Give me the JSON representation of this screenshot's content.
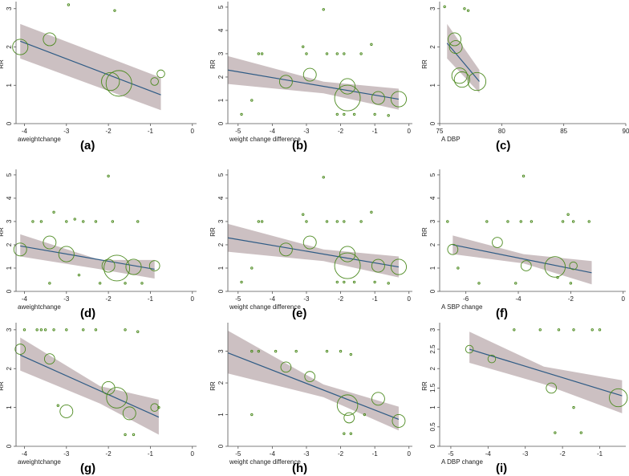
{
  "colors": {
    "band": "#c6b9bb",
    "line": "#2e5b85",
    "marker": "#4c8a1f",
    "axis": "#555555"
  },
  "chart_data": [
    {
      "type": "scatter",
      "panel_label": "(a)",
      "xlabel": "aweightchange",
      "ylabel": "RR",
      "xlim": [
        -4.2,
        0.1
      ],
      "ylim": [
        0,
        3.1
      ],
      "xticks": [
        -4,
        -3,
        -2,
        -1,
        0
      ],
      "yticks": [
        0,
        1,
        2,
        3
      ],
      "points": [
        {
          "x": -4.1,
          "y": 2.0,
          "size": 6
        },
        {
          "x": -3.4,
          "y": 2.2,
          "size": 5
        },
        {
          "x": -1.95,
          "y": 1.1,
          "size": 7
        },
        {
          "x": -1.75,
          "y": 1.05,
          "size": 10
        },
        {
          "x": -0.9,
          "y": 1.1,
          "size": 3
        },
        {
          "x": -0.75,
          "y": 1.3,
          "size": 3
        },
        {
          "x": -2.95,
          "y": 3.1,
          "size": 1
        },
        {
          "x": -1.85,
          "y": 2.95,
          "size": 1
        }
      ],
      "fit": {
        "x": [
          -4.1,
          -0.75
        ],
        "y": [
          2.15,
          0.75
        ]
      },
      "ci": {
        "x": [
          -4.1,
          -0.75
        ],
        "lower": [
          1.7,
          0.35
        ],
        "upper": [
          2.6,
          1.2
        ]
      }
    },
    {
      "type": "scatter",
      "panel_label": "(b)",
      "xlabel": "weight change difference",
      "ylabel": "RR",
      "xlim": [
        -5.3,
        0.1
      ],
      "ylim": [
        0,
        5.1
      ],
      "xticks": [
        -5,
        -4,
        -3,
        -2,
        -1,
        0
      ],
      "yticks": [
        0,
        1,
        2,
        3,
        4,
        5
      ],
      "points": [
        {
          "x": -3.6,
          "y": 1.8,
          "size": 5
        },
        {
          "x": -2.9,
          "y": 2.1,
          "size": 5
        },
        {
          "x": -1.8,
          "y": 1.6,
          "size": 6
        },
        {
          "x": -1.8,
          "y": 1.1,
          "size": 10
        },
        {
          "x": -0.9,
          "y": 1.1,
          "size": 5
        },
        {
          "x": -0.3,
          "y": 1.05,
          "size": 6
        },
        {
          "x": -2.5,
          "y": 4.9,
          "size": 1
        },
        {
          "x": -4.4,
          "y": 3.0,
          "size": 1
        },
        {
          "x": -4.3,
          "y": 3.0,
          "size": 1
        },
        {
          "x": -3.1,
          "y": 3.3,
          "size": 1
        },
        {
          "x": -3.0,
          "y": 3.0,
          "size": 1
        },
        {
          "x": -2.4,
          "y": 3.0,
          "size": 1
        },
        {
          "x": -2.1,
          "y": 3.0,
          "size": 1
        },
        {
          "x": -1.9,
          "y": 3.0,
          "size": 1
        },
        {
          "x": -1.4,
          "y": 3.0,
          "size": 1
        },
        {
          "x": -1.1,
          "y": 3.4,
          "size": 1
        },
        {
          "x": -4.6,
          "y": 1.0,
          "size": 1
        },
        {
          "x": -4.9,
          "y": 0.4,
          "size": 1
        },
        {
          "x": -2.1,
          "y": 0.4,
          "size": 1
        },
        {
          "x": -1.9,
          "y": 0.4,
          "size": 1
        },
        {
          "x": -1.6,
          "y": 0.4,
          "size": 1
        },
        {
          "x": -1.0,
          "y": 0.4,
          "size": 1
        },
        {
          "x": -0.6,
          "y": 0.35,
          "size": 1
        }
      ],
      "fit": {
        "x": [
          -5.3,
          -0.3
        ],
        "y": [
          2.3,
          1.05
        ]
      },
      "ci": {
        "x": [
          -5.3,
          -2.5,
          -0.3
        ],
        "lower": [
          1.7,
          1.3,
          0.6
        ],
        "upper": [
          2.9,
          1.8,
          1.5
        ]
      }
    },
    {
      "type": "scatter",
      "panel_label": "(c)",
      "xlabel": "A DBP",
      "ylabel": "RR",
      "xlim": [
        75,
        90
      ],
      "ylim": [
        0,
        3.1
      ],
      "xticks": [
        75,
        80,
        85,
        90
      ],
      "yticks": [
        0,
        1,
        2,
        3
      ],
      "points": [
        {
          "x": 76.2,
          "y": 2.2,
          "size": 5
        },
        {
          "x": 76.3,
          "y": 2.0,
          "size": 5
        },
        {
          "x": 76.6,
          "y": 1.25,
          "size": 6
        },
        {
          "x": 76.8,
          "y": 1.15,
          "size": 6
        },
        {
          "x": 78.0,
          "y": 1.1,
          "size": 7
        },
        {
          "x": 75.4,
          "y": 3.05,
          "size": 1
        },
        {
          "x": 77.0,
          "y": 3.0,
          "size": 1
        },
        {
          "x": 77.3,
          "y": 2.95,
          "size": 1
        }
      ],
      "fit": {
        "x": [
          75.6,
          78.2
        ],
        "y": [
          2.1,
          1.1
        ]
      },
      "ci": {
        "x": [
          75.6,
          78.2
        ],
        "lower": [
          1.7,
          0.8
        ],
        "upper": [
          2.6,
          1.4
        ]
      }
    },
    {
      "type": "scatter",
      "panel_label": "(d)",
      "xlabel": "aweightchange",
      "ylabel": "RR",
      "xlim": [
        -4.2,
        0.1
      ],
      "ylim": [
        0,
        5.1
      ],
      "xticks": [
        -4,
        -3,
        -2,
        -1,
        0
      ],
      "yticks": [
        0,
        1,
        2,
        3,
        4,
        5
      ],
      "points": [
        {
          "x": -4.1,
          "y": 1.8,
          "size": 5
        },
        {
          "x": -3.4,
          "y": 2.1,
          "size": 5
        },
        {
          "x": -3.0,
          "y": 1.6,
          "size": 6
        },
        {
          "x": -2.0,
          "y": 1.1,
          "size": 5
        },
        {
          "x": -1.8,
          "y": 1.0,
          "size": 10
        },
        {
          "x": -1.4,
          "y": 1.05,
          "size": 6
        },
        {
          "x": -0.9,
          "y": 1.1,
          "size": 4
        },
        {
          "x": -2.0,
          "y": 4.95,
          "size": 1
        },
        {
          "x": -3.8,
          "y": 3.0,
          "size": 1
        },
        {
          "x": -3.6,
          "y": 3.0,
          "size": 1
        },
        {
          "x": -3.3,
          "y": 3.4,
          "size": 1
        },
        {
          "x": -3.0,
          "y": 3.0,
          "size": 1
        },
        {
          "x": -2.8,
          "y": 3.1,
          "size": 1
        },
        {
          "x": -2.6,
          "y": 3.0,
          "size": 1
        },
        {
          "x": -2.3,
          "y": 3.0,
          "size": 1
        },
        {
          "x": -1.9,
          "y": 3.0,
          "size": 1
        },
        {
          "x": -1.3,
          "y": 3.0,
          "size": 1
        },
        {
          "x": -3.4,
          "y": 0.35,
          "size": 1
        },
        {
          "x": -2.7,
          "y": 0.7,
          "size": 1
        },
        {
          "x": -2.2,
          "y": 0.35,
          "size": 1
        },
        {
          "x": -1.6,
          "y": 0.35,
          "size": 1
        },
        {
          "x": -1.2,
          "y": 0.35,
          "size": 1
        }
      ],
      "fit": {
        "x": [
          -4.1,
          -0.9
        ],
        "y": [
          1.95,
          0.95
        ]
      },
      "ci": {
        "x": [
          -4.1,
          -2.2,
          -0.9
        ],
        "lower": [
          1.5,
          0.95,
          0.55
        ],
        "upper": [
          2.45,
          1.35,
          1.35
        ]
      }
    },
    {
      "type": "scatter",
      "panel_label": "(e)",
      "xlabel": "weight change difference",
      "ylabel": "RR",
      "xlim": [
        -5.3,
        0.1
      ],
      "ylim": [
        0,
        5.1
      ],
      "xticks": [
        -5,
        -4,
        -3,
        -2,
        -1,
        0
      ],
      "yticks": [
        0,
        1,
        2,
        3,
        4,
        5
      ],
      "points": [
        {
          "x": -3.6,
          "y": 1.8,
          "size": 5
        },
        {
          "x": -2.9,
          "y": 2.1,
          "size": 5
        },
        {
          "x": -1.8,
          "y": 1.6,
          "size": 6
        },
        {
          "x": -1.8,
          "y": 1.1,
          "size": 10
        },
        {
          "x": -0.9,
          "y": 1.1,
          "size": 5
        },
        {
          "x": -0.3,
          "y": 1.05,
          "size": 6
        },
        {
          "x": -2.5,
          "y": 4.9,
          "size": 1
        },
        {
          "x": -4.4,
          "y": 3.0,
          "size": 1
        },
        {
          "x": -4.3,
          "y": 3.0,
          "size": 1
        },
        {
          "x": -3.1,
          "y": 3.3,
          "size": 1
        },
        {
          "x": -3.0,
          "y": 3.0,
          "size": 1
        },
        {
          "x": -2.4,
          "y": 3.0,
          "size": 1
        },
        {
          "x": -2.1,
          "y": 3.0,
          "size": 1
        },
        {
          "x": -1.9,
          "y": 3.0,
          "size": 1
        },
        {
          "x": -1.4,
          "y": 3.0,
          "size": 1
        },
        {
          "x": -1.1,
          "y": 3.4,
          "size": 1
        },
        {
          "x": -4.6,
          "y": 1.0,
          "size": 1
        },
        {
          "x": -4.9,
          "y": 0.4,
          "size": 1
        },
        {
          "x": -2.1,
          "y": 0.4,
          "size": 1
        },
        {
          "x": -1.9,
          "y": 0.4,
          "size": 1
        },
        {
          "x": -1.6,
          "y": 0.4,
          "size": 1
        },
        {
          "x": -1.0,
          "y": 0.4,
          "size": 1
        },
        {
          "x": -0.6,
          "y": 0.35,
          "size": 1
        }
      ],
      "fit": {
        "x": [
          -5.3,
          -0.3
        ],
        "y": [
          2.3,
          1.05
        ]
      },
      "ci": {
        "x": [
          -5.3,
          -2.5,
          -0.3
        ],
        "lower": [
          1.7,
          1.3,
          0.6
        ],
        "upper": [
          2.9,
          1.8,
          1.5
        ]
      }
    },
    {
      "type": "scatter",
      "panel_label": "(f)",
      "xlabel": "A SBP change",
      "ylabel": "RR",
      "xlim": [
        -7,
        0.1
      ],
      "ylim": [
        0,
        5.1
      ],
      "xticks": [
        -6,
        -4,
        -2,
        0
      ],
      "yticks": [
        0,
        1,
        2,
        3,
        4,
        5
      ],
      "points": [
        {
          "x": -6.5,
          "y": 1.8,
          "size": 4
        },
        {
          "x": -4.8,
          "y": 2.1,
          "size": 4
        },
        {
          "x": -3.7,
          "y": 1.1,
          "size": 4
        },
        {
          "x": -2.6,
          "y": 1.05,
          "size": 8
        },
        {
          "x": -1.9,
          "y": 1.1,
          "size": 3
        },
        {
          "x": -3.8,
          "y": 4.95,
          "size": 1
        },
        {
          "x": -6.7,
          "y": 3.0,
          "size": 1
        },
        {
          "x": -5.2,
          "y": 3.0,
          "size": 1
        },
        {
          "x": -4.4,
          "y": 3.0,
          "size": 1
        },
        {
          "x": -3.9,
          "y": 3.0,
          "size": 1
        },
        {
          "x": -3.5,
          "y": 3.0,
          "size": 1
        },
        {
          "x": -2.3,
          "y": 3.0,
          "size": 1
        },
        {
          "x": -2.1,
          "y": 3.3,
          "size": 1
        },
        {
          "x": -1.9,
          "y": 3.0,
          "size": 1
        },
        {
          "x": -1.3,
          "y": 3.0,
          "size": 1
        },
        {
          "x": -6.3,
          "y": 1.0,
          "size": 1
        },
        {
          "x": -5.5,
          "y": 0.35,
          "size": 1
        },
        {
          "x": -4.1,
          "y": 0.35,
          "size": 1
        },
        {
          "x": -2.5,
          "y": 0.6,
          "size": 1
        },
        {
          "x": -2.0,
          "y": 0.35,
          "size": 1
        }
      ],
      "fit": {
        "x": [
          -6.5,
          -1.2
        ],
        "y": [
          2.0,
          0.8
        ]
      },
      "ci": {
        "x": [
          -6.5,
          -3.8,
          -1.2
        ],
        "lower": [
          1.6,
          1.2,
          0.3
        ],
        "upper": [
          2.4,
          1.6,
          1.3
        ]
      }
    },
    {
      "type": "scatter",
      "panel_label": "(g)",
      "xlabel": "aweightchange",
      "ylabel": "RR",
      "xlim": [
        -4.2,
        0.1
      ],
      "ylim": [
        0,
        3.1
      ],
      "xticks": [
        -4,
        -3,
        -2,
        -1,
        0
      ],
      "yticks": [
        0,
        1,
        2,
        3
      ],
      "points": [
        {
          "x": -4.1,
          "y": 2.5,
          "size": 4
        },
        {
          "x": -3.4,
          "y": 2.25,
          "size": 4
        },
        {
          "x": -3.0,
          "y": 0.9,
          "size": 5
        },
        {
          "x": -2.0,
          "y": 1.5,
          "size": 5
        },
        {
          "x": -1.8,
          "y": 1.25,
          "size": 8
        },
        {
          "x": -1.5,
          "y": 0.85,
          "size": 5
        },
        {
          "x": -0.9,
          "y": 1.0,
          "size": 3
        },
        {
          "x": -4.0,
          "y": 3.0,
          "size": 1
        },
        {
          "x": -3.7,
          "y": 3.0,
          "size": 1
        },
        {
          "x": -3.6,
          "y": 3.0,
          "size": 1
        },
        {
          "x": -3.5,
          "y": 3.0,
          "size": 1
        },
        {
          "x": -3.3,
          "y": 3.0,
          "size": 1
        },
        {
          "x": -3.0,
          "y": 3.0,
          "size": 1
        },
        {
          "x": -2.6,
          "y": 3.0,
          "size": 1
        },
        {
          "x": -2.3,
          "y": 3.0,
          "size": 1
        },
        {
          "x": -1.6,
          "y": 3.0,
          "size": 1
        },
        {
          "x": -1.3,
          "y": 2.95,
          "size": 1
        },
        {
          "x": -3.2,
          "y": 1.05,
          "size": 1
        },
        {
          "x": -1.6,
          "y": 0.3,
          "size": 1
        },
        {
          "x": -1.4,
          "y": 0.3,
          "size": 1
        },
        {
          "x": -0.8,
          "y": 1.0,
          "size": 1
        }
      ],
      "fit": {
        "x": [
          -4.1,
          -0.8
        ],
        "y": [
          2.35,
          0.75
        ]
      },
      "ci": {
        "x": [
          -4.1,
          -2.2,
          -0.8
        ],
        "lower": [
          1.95,
          1.1,
          0.3
        ],
        "upper": [
          2.8,
          1.55,
          1.2
        ]
      }
    },
    {
      "type": "scatter",
      "panel_label": "(h)",
      "xlabel": "weight change difference",
      "ylabel": "RR",
      "xlim": [
        -5.3,
        0.1
      ],
      "ylim": [
        0,
        3.8
      ],
      "xticks": [
        -5,
        -4,
        -3,
        -2,
        -1,
        0
      ],
      "yticks": [
        0,
        1,
        2,
        3
      ],
      "points": [
        {
          "x": -3.6,
          "y": 2.5,
          "size": 4
        },
        {
          "x": -2.9,
          "y": 2.2,
          "size": 4
        },
        {
          "x": -1.8,
          "y": 1.3,
          "size": 8
        },
        {
          "x": -1.75,
          "y": 0.9,
          "size": 4
        },
        {
          "x": -0.9,
          "y": 1.5,
          "size": 5
        },
        {
          "x": -0.3,
          "y": 0.8,
          "size": 5
        },
        {
          "x": -4.6,
          "y": 3.0,
          "size": 1
        },
        {
          "x": -4.4,
          "y": 3.0,
          "size": 1
        },
        {
          "x": -3.9,
          "y": 3.0,
          "size": 1
        },
        {
          "x": -3.3,
          "y": 3.0,
          "size": 1
        },
        {
          "x": -2.4,
          "y": 3.0,
          "size": 1
        },
        {
          "x": -2.0,
          "y": 3.0,
          "size": 1
        },
        {
          "x": -1.7,
          "y": 2.9,
          "size": 1
        },
        {
          "x": -4.6,
          "y": 1.0,
          "size": 1
        },
        {
          "x": -1.9,
          "y": 0.4,
          "size": 1
        },
        {
          "x": -1.7,
          "y": 0.4,
          "size": 1
        },
        {
          "x": -1.3,
          "y": 1.0,
          "size": 1
        }
      ],
      "fit": {
        "x": [
          -5.3,
          -0.3
        ],
        "y": [
          2.95,
          0.85
        ]
      },
      "ci": {
        "x": [
          -5.3,
          -2.5,
          -0.3
        ],
        "lower": [
          2.3,
          1.55,
          0.5
        ],
        "upper": [
          3.65,
          1.95,
          1.25
        ]
      }
    },
    {
      "type": "scatter",
      "panel_label": "(i)",
      "xlabel": "A DBP change",
      "ylabel": "RR",
      "xlim": [
        -5.3,
        -0.3
      ],
      "ylim": [
        0,
        3.1
      ],
      "xticks": [
        -5,
        -4,
        -3,
        -2,
        -1
      ],
      "yticks": [
        0,
        0.5,
        1,
        1.5,
        2,
        2.5,
        3
      ],
      "points": [
        {
          "x": -4.5,
          "y": 2.5,
          "size": 3
        },
        {
          "x": -3.9,
          "y": 2.25,
          "size": 3
        },
        {
          "x": -2.3,
          "y": 1.5,
          "size": 4
        },
        {
          "x": -0.5,
          "y": 1.25,
          "size": 7
        },
        {
          "x": -3.3,
          "y": 3.0,
          "size": 1
        },
        {
          "x": -2.6,
          "y": 3.0,
          "size": 1
        },
        {
          "x": -2.1,
          "y": 3.0,
          "size": 1
        },
        {
          "x": -1.7,
          "y": 3.0,
          "size": 1
        },
        {
          "x": -1.2,
          "y": 3.0,
          "size": 1
        },
        {
          "x": -1.0,
          "y": 3.0,
          "size": 1
        },
        {
          "x": -1.7,
          "y": 1.0,
          "size": 1
        },
        {
          "x": -2.2,
          "y": 0.35,
          "size": 1
        },
        {
          "x": -1.5,
          "y": 0.35,
          "size": 1
        }
      ],
      "fit": {
        "x": [
          -4.5,
          -0.4
        ],
        "y": [
          2.5,
          1.3
        ]
      },
      "ci": {
        "x": [
          -4.5,
          -2.5,
          -0.4
        ],
        "lower": [
          2.15,
          1.6,
          0.85
        ],
        "upper": [
          2.95,
          2.05,
          1.7
        ]
      }
    }
  ]
}
